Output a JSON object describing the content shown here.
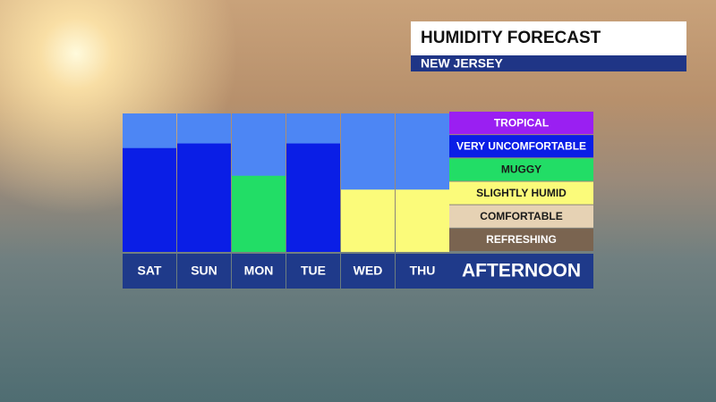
{
  "chart_data": {
    "type": "bar",
    "title": "HUMIDITY FORECAST",
    "subtitle": "NEW JERSEY",
    "x_label": "AFTERNOON",
    "categories": [
      "SAT",
      "SUN",
      "MON",
      "TUE",
      "WED",
      "THU"
    ],
    "values": [
      4.5,
      4.7,
      3.3,
      4.7,
      2.7,
      2.7
    ],
    "colors": [
      "#0a1ee6",
      "#0a1ee6",
      "#22dd66",
      "#0a1ee6",
      "#fbfb7a",
      "#fbfb7a"
    ],
    "ylim": [
      0,
      6
    ],
    "background_color": "#4d86f4",
    "levels": [
      {
        "name": "TROPICAL",
        "color": "#9a1ff2",
        "text_color": "#ffffff"
      },
      {
        "name": "VERY UNCOMFORTABLE",
        "color": "#0a1ee6",
        "text_color": "#ffffff"
      },
      {
        "name": "MUGGY",
        "color": "#22dd66",
        "text_color": "#1a1a1a"
      },
      {
        "name": "SLIGHTLY HUMID",
        "color": "#fbfb7a",
        "text_color": "#1a1a1a"
      },
      {
        "name": "COMFORTABLE",
        "color": "#e6d2b4",
        "text_color": "#1a1a1a"
      },
      {
        "name": "REFRESHING",
        "color": "#7a6450",
        "text_color": "#ffffff"
      }
    ]
  }
}
